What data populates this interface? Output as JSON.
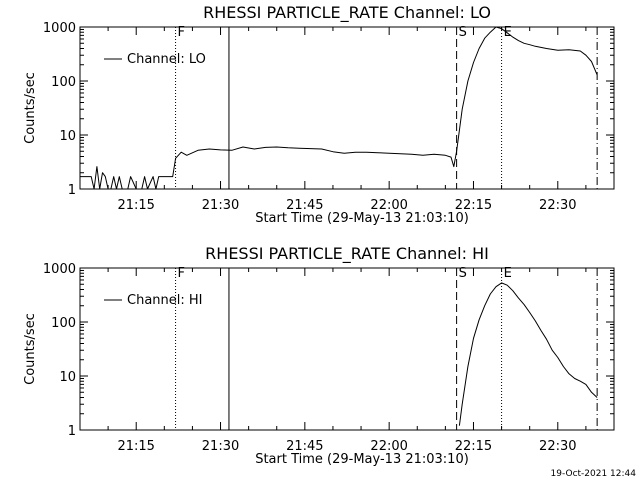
{
  "chart_data": [
    {
      "type": "line",
      "title": "RHESSI PARTICLE_RATE Channel: LO",
      "xlabel": "Start Time (29-May-13 21:03:10)",
      "ylabel": "Counts/sec",
      "yscale": "log",
      "ylim": [
        1,
        1000
      ],
      "xlim": [
        "21:05",
        "22:40"
      ],
      "xticks": [
        "21:15",
        "21:30",
        "21:45",
        "22:00",
        "22:15",
        "22:30"
      ],
      "yticks": [
        "1",
        "10",
        "100",
        "1000"
      ],
      "legend": {
        "label": "Channel: LO",
        "placement": "top-left"
      },
      "markers": [
        {
          "label": "F",
          "time": "21:22",
          "style": "dotted"
        },
        {
          "label": "",
          "time": "21:31.5",
          "style": "solid"
        },
        {
          "label": "S",
          "time": "22:12",
          "style": "dashed"
        },
        {
          "label": "E",
          "time": "22:20",
          "style": "dotted"
        },
        {
          "label": "",
          "time": "22:37",
          "style": "dash-dot"
        }
      ],
      "series": [
        {
          "x": [
            "21:05",
            "21:07",
            "21:07.5",
            "21:08",
            "21:08.5",
            "21:09",
            "21:09.5",
            "21:10",
            "21:10.5",
            "21:11",
            "21:11.5",
            "21:12",
            "21:12.5",
            "21:13",
            "21:13.5",
            "21:14",
            "21:15",
            "21:16",
            "21:16.5",
            "21:17",
            "21:18",
            "21:18.5",
            "21:19",
            "21:20",
            "21:21",
            "21:21.5",
            "21:22",
            "21:23",
            "21:24",
            "21:26",
            "21:28",
            "21:30",
            "21:32",
            "21:34",
            "21:36",
            "21:38",
            "21:40",
            "21:42",
            "21:44",
            "21:46",
            "21:48",
            "21:50",
            "21:52",
            "21:54",
            "21:56",
            "21:58",
            "22:00",
            "22:02",
            "22:04",
            "22:06",
            "22:08",
            "22:10",
            "22:11",
            "22:11.5",
            "22:12",
            "22:13",
            "22:14",
            "22:15",
            "22:16",
            "22:17",
            "22:18",
            "22:19",
            "22:20",
            "22:21",
            "22:22",
            "22:23",
            "22:24",
            "22:25",
            "22:26",
            "22:28",
            "22:30",
            "22:32",
            "22:34",
            "22:35",
            "22:36",
            "22:37"
          ],
          "y": [
            1.7,
            1.7,
            1,
            2.6,
            1,
            2,
            1.7,
            1,
            1,
            1.7,
            1,
            1.7,
            1,
            1,
            1,
            1.7,
            1,
            1,
            1.7,
            1,
            1.7,
            1,
            1.7,
            1.7,
            1.7,
            1.7,
            3.7,
            4.8,
            4.2,
            5.2,
            5.5,
            5.3,
            5.2,
            6.0,
            5.5,
            5.9,
            6.0,
            5.8,
            5.7,
            5.6,
            5.5,
            4.9,
            4.6,
            4.8,
            4.8,
            4.7,
            4.6,
            4.5,
            4.4,
            4.2,
            4.4,
            4.2,
            3.9,
            2.6,
            5,
            30,
            100,
            220,
            400,
            620,
            800,
            1000,
            930,
            780,
            650,
            560,
            500,
            470,
            440,
            400,
            370,
            380,
            360,
            300,
            230,
            130
          ]
        }
      ]
    },
    {
      "type": "line",
      "title": "RHESSI PARTICLE_RATE Channel: HI",
      "xlabel": "Start Time (29-May-13 21:03:10)",
      "ylabel": "Counts/sec",
      "yscale": "log",
      "ylim": [
        1,
        1000
      ],
      "xlim": [
        "21:05",
        "22:40"
      ],
      "xticks": [
        "21:15",
        "21:30",
        "21:45",
        "22:00",
        "22:15",
        "22:30"
      ],
      "yticks": [
        "1",
        "10",
        "100",
        "1000"
      ],
      "legend": {
        "label": "Channel: HI",
        "placement": "top-left"
      },
      "markers": [
        {
          "label": "F",
          "time": "21:22",
          "style": "dotted"
        },
        {
          "label": "",
          "time": "21:31.5",
          "style": "solid"
        },
        {
          "label": "S",
          "time": "22:12",
          "style": "dashed"
        },
        {
          "label": "E",
          "time": "22:20",
          "style": "dotted"
        },
        {
          "label": "",
          "time": "22:37",
          "style": "dash-dot"
        }
      ],
      "series": [
        {
          "x": [
            "22:12.5",
            "22:13",
            "22:14",
            "22:15",
            "22:16",
            "22:17",
            "22:18",
            "22:19",
            "22:20",
            "22:21",
            "22:22",
            "22:23",
            "22:24",
            "22:25",
            "22:26",
            "22:27",
            "22:28",
            "22:29",
            "22:30",
            "22:31",
            "22:32",
            "22:33",
            "22:34",
            "22:35",
            "22:36",
            "22:37"
          ],
          "y": [
            1.2,
            3,
            15,
            50,
            110,
            200,
            330,
            450,
            530,
            480,
            380,
            280,
            210,
            150,
            105,
            70,
            48,
            30,
            22,
            15,
            11,
            9,
            8,
            7,
            5,
            4
          ]
        }
      ]
    }
  ],
  "footer": {
    "date": "19-Oct-2021 12:44"
  }
}
